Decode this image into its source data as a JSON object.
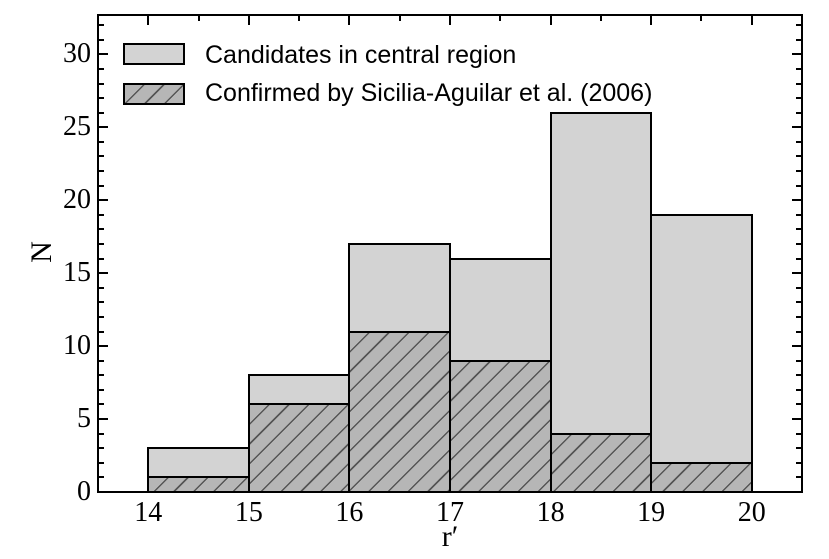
{
  "chart_data": {
    "type": "histogram",
    "title": "",
    "xlabel": "r′",
    "ylabel": "N",
    "bin_edges": [
      14,
      15,
      16,
      17,
      18,
      19,
      20
    ],
    "series": [
      {
        "name": "Candidates in central region",
        "values": [
          3,
          8,
          17,
          16,
          26,
          19
        ],
        "style": "solid",
        "fill_color": "#d3d3d3",
        "edge_color": "#000000"
      },
      {
        "name": "Confirmed by Sicilia-Aguilar et al. (2006)",
        "values": [
          1,
          6,
          11,
          9,
          4,
          2
        ],
        "style": "hatched",
        "hatch": "/",
        "fill_color": "#b6b6b6",
        "hatch_color": "#555555",
        "edge_color": "#000000"
      }
    ],
    "xlim": [
      13.5,
      20.5
    ],
    "ylim": [
      0,
      32.7
    ],
    "xticks_major": [
      14,
      15,
      16,
      17,
      18,
      19,
      20
    ],
    "xtick_labels": [
      "14",
      "15",
      "16",
      "17",
      "18",
      "19",
      "20"
    ],
    "xtick_minor_step": 0.5,
    "yticks_major": [
      0,
      5,
      10,
      15,
      20,
      25,
      30
    ],
    "ytick_labels": [
      "0",
      "5",
      "10",
      "15",
      "20",
      "25",
      "30"
    ],
    "ytick_minor_step": 1,
    "grid": false,
    "legend_position": "upper-left",
    "background_color": "#ffffff",
    "axis_color": "#000000"
  }
}
